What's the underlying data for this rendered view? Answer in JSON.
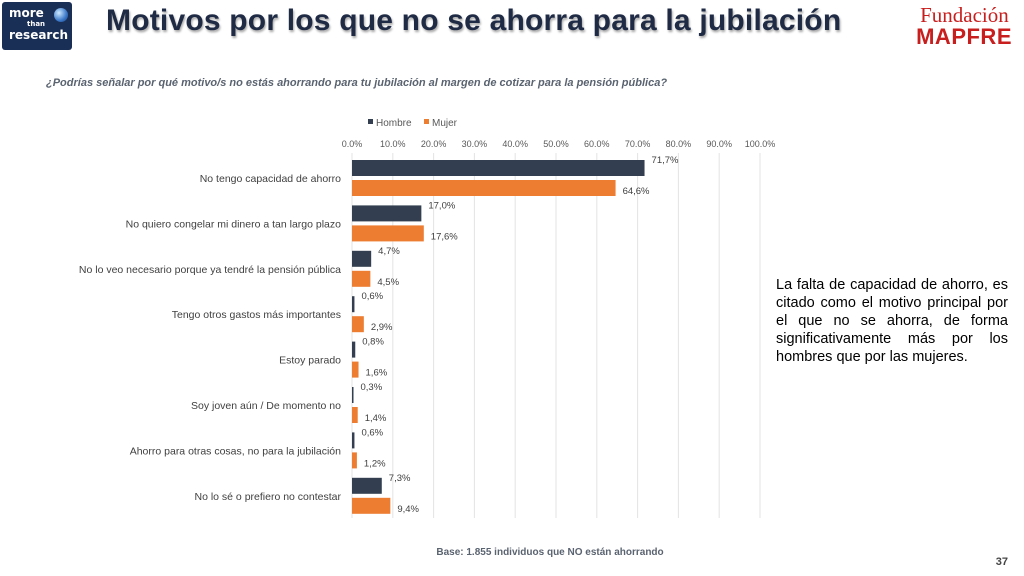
{
  "header": {
    "logo_left": {
      "line1": "more",
      "line2": "than",
      "line3": "research"
    },
    "title": "Motivos por los que no se ahorra para la jubilación",
    "brand_line1": "Fundación",
    "brand_line2": "MAPFRE"
  },
  "question": "¿Podrías señalar por qué motivo/s no estás ahorrando para tu jubilación al margen de cotizar para la pensión pública?",
  "note": "La falta de capacidad de ahorro, es citado como el motivo principal por el que no se ahorra, de forma significativamente más por los hombres que por las mujeres.",
  "footer": {
    "base": "Base: 1.855 individuos que NO están ahorrando",
    "page_number": "37"
  },
  "colors": {
    "hombre": "#333f50",
    "mujer": "#ed7d31",
    "title": "#1f2a44",
    "brand": "#c81e1e"
  },
  "chart_data": {
    "type": "bar",
    "orientation": "horizontal",
    "title": "",
    "xlim": [
      0,
      100
    ],
    "x_ticks": [
      "0.0%",
      "10.0%",
      "20.0%",
      "30.0%",
      "40.0%",
      "50.0%",
      "60.0%",
      "70.0%",
      "80.0%",
      "90.0%",
      "100.0%"
    ],
    "legend": {
      "position": "top",
      "entries": [
        "Hombre",
        "Mujer"
      ]
    },
    "categories": [
      "No tengo capacidad de ahorro",
      "No quiero congelar mi dinero a tan largo plazo",
      "No lo veo necesario porque ya tendré la pensión pública",
      "Tengo otros gastos más importantes",
      "Estoy parado",
      "Soy joven aún / De momento no",
      "Ahorro para otras cosas, no para la jubilación",
      "No lo sé o prefiero no contestar"
    ],
    "series": [
      {
        "name": "Hombre",
        "values": [
          71.7,
          17.0,
          4.7,
          0.6,
          0.8,
          0.3,
          0.6,
          7.3
        ],
        "labels": [
          "71,7%",
          "17,0%",
          "4,7%",
          "0,6%",
          "0,8%",
          "0,3%",
          "0,6%",
          "7,3%"
        ]
      },
      {
        "name": "Mujer",
        "values": [
          64.6,
          17.6,
          4.5,
          2.9,
          1.6,
          1.4,
          1.2,
          9.4
        ],
        "labels": [
          "64,6%",
          "17,6%",
          "4,5%",
          "2,9%",
          "1,6%",
          "1,4%",
          "1,2%",
          "9,4%"
        ]
      }
    ]
  }
}
